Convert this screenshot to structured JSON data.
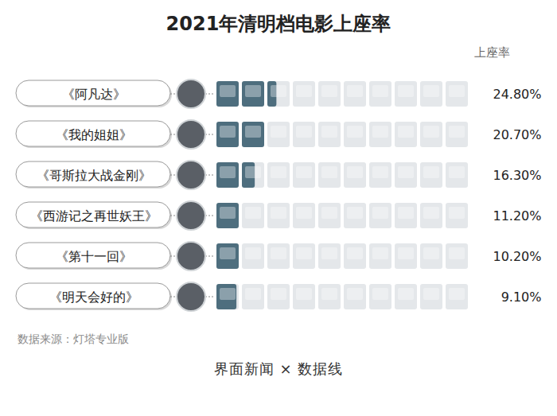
{
  "chart_data": {
    "type": "bar",
    "orientation": "horizontal",
    "title": "2021年清明档电影上座率",
    "xlabel": "上座率",
    "categories": [
      "《阿凡达》",
      "《我的姐姐》",
      "《哥斯拉大战金刚》",
      "《西游记之再世妖王》",
      "《第十一回》",
      "《明天会好的》"
    ],
    "values": [
      24.8,
      20.7,
      16.3,
      11.2,
      10.2,
      9.1
    ],
    "value_labels": [
      "24.80%",
      "20.70%",
      "16.30%",
      "11.20%",
      "10.20%",
      "9.10%"
    ],
    "data_labels": true,
    "tick_labels": false,
    "xlim": [
      0,
      100
    ],
    "color": "#4e6e7e",
    "annotations": [
      "数据来源：灯塔专业版",
      "界面新闻 × 数据线"
    ]
  }
}
